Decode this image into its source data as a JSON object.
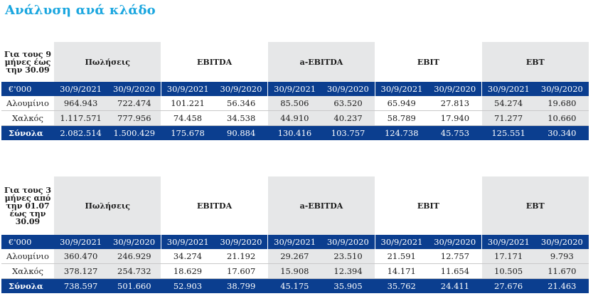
{
  "page": {
    "title": "Ανάλυση ανά κλάδο"
  },
  "tables": [
    {
      "period_label": "Για τους 9 μήνες έως την 30.09",
      "groups": [
        "Πωλήσεις",
        "EBITDA",
        "a-EBITDA",
        "EBIT",
        "EBT"
      ],
      "unit_label": "€'000",
      "dates": [
        "30/9/2021",
        "30/9/2020",
        "30/9/2021",
        "30/9/2020",
        "30/9/2021",
        "30/9/2020",
        "30/9/2021",
        "30/9/2020",
        "30/9/2021",
        "30/9/2020"
      ],
      "rows": [
        {
          "label": "Αλουμίνιο",
          "values": [
            "964.943",
            "722.474",
            "101.221",
            "56.346",
            "85.506",
            "63.520",
            "65.949",
            "27.813",
            "54.274",
            "19.680"
          ]
        },
        {
          "label": "Χαλκός",
          "values": [
            "1.117.571",
            "777.956",
            "74.458",
            "34.538",
            "44.910",
            "40.237",
            "58.789",
            "17.940",
            "71.277",
            "10.660"
          ]
        }
      ],
      "total": {
        "label": "Σύνολα",
        "values": [
          "2.082.514",
          "1.500.429",
          "175.678",
          "90.884",
          "130.416",
          "103.757",
          "124.738",
          "45.753",
          "125.551",
          "30.340"
        ]
      }
    },
    {
      "period_label": "Για τους 3 μήνες από την 01.07 έως την 30.09",
      "groups": [
        "Πωλήσεις",
        "EBITDA",
        "a-EBITDA",
        "EBIT",
        "EBT"
      ],
      "unit_label": "€'000",
      "dates": [
        "30/9/2021",
        "30/9/2020",
        "30/9/2021",
        "30/9/2020",
        "30/9/2021",
        "30/9/2020",
        "30/9/2021",
        "30/9/2020",
        "30/9/2021",
        "30/9/2020"
      ],
      "rows": [
        {
          "label": "Αλουμίνιο",
          "values": [
            "360.470",
            "246.929",
            "34.274",
            "21.192",
            "29.267",
            "23.510",
            "21.591",
            "12.757",
            "17.171",
            "9.793"
          ]
        },
        {
          "label": "Χαλκός",
          "values": [
            "378.127",
            "254.732",
            "18.629",
            "17.607",
            "15.908",
            "12.394",
            "14.171",
            "11.654",
            "10.505",
            "11.670"
          ]
        }
      ],
      "total": {
        "label": "Σύνολα",
        "values": [
          "738.597",
          "501.660",
          "52.903",
          "38.799",
          "45.175",
          "35.905",
          "35.762",
          "24.411",
          "27.676",
          "21.463"
        ]
      }
    }
  ]
}
